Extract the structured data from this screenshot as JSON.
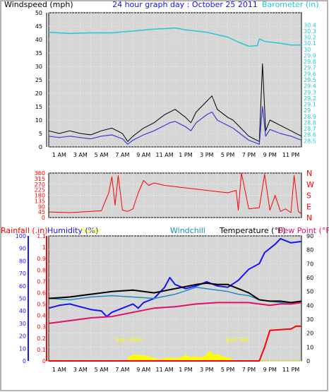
{
  "header": {
    "left_label": "Windspeed (mph)",
    "title": "24 hour graph day : October 25 2011",
    "right_label": "Barometer (in)"
  },
  "colors": {
    "frame_blue": "#1414e6",
    "plot_bg": "#d6d6d6",
    "gust": "#000000",
    "windspeed": "#3a3ad8",
    "barometer": "#22c8d8",
    "direction": "#ff0000",
    "rain": "#ff0000",
    "humidity": "#1414ff",
    "solar": "#ffff00",
    "windchill": "#1e8ec0",
    "temperature": "#000000",
    "dewpoint": "#e0106a"
  },
  "x_axis": {
    "ticks": [
      "1 AM",
      "3 AM",
      "5 AM",
      "7 AM",
      "9 AM",
      "11 AM",
      "1 PM",
      "3 PM",
      "5 PM",
      "7 PM",
      "9 PM",
      "11 PM"
    ]
  },
  "direction_labels": [
    "N",
    "W",
    "S",
    "E",
    "N"
  ],
  "bottom_header": {
    "rainfall": "Rainfall (.in)",
    "humidity": "Humidity (%)",
    "solar": "Solar",
    "windchill": "Windchill",
    "temperature": "Temperature (°F)",
    "dewpoint": "Dew Point (°F)"
  },
  "annotations": {
    "sunrise": "Sun Rise",
    "sunset": "Sun Set"
  },
  "chart_data": [
    {
      "type": "line",
      "x_unit": "hours since midnight",
      "xlim": [
        0,
        24
      ],
      "ylim": [
        0,
        50
      ],
      "y_ticks": [
        0,
        5,
        10,
        15,
        20,
        25,
        30,
        35,
        40,
        45,
        50
      ],
      "ylabel": "Windspeed (mph)",
      "series": [
        {
          "name": "Gust",
          "x": [
            0,
            1,
            2,
            3,
            4,
            5,
            6,
            7,
            7.5,
            8,
            9,
            10,
            11,
            11.5,
            12,
            13,
            13.5,
            14,
            15,
            15.5,
            16,
            17,
            17.5,
            18,
            19,
            20,
            20.3,
            20.6,
            21,
            22,
            23,
            24
          ],
          "y": [
            6,
            5,
            6,
            5,
            4.5,
            6,
            7,
            5,
            2,
            4,
            7,
            9,
            12,
            13,
            14,
            11,
            9,
            13,
            17,
            19,
            14,
            11,
            10,
            8,
            4,
            2,
            31,
            6,
            10,
            8,
            6,
            4
          ]
        },
        {
          "name": "Windspeed",
          "x": [
            0,
            1,
            2,
            3,
            4,
            5,
            6,
            7,
            7.5,
            8,
            9,
            10,
            11,
            11.5,
            12,
            13,
            13.5,
            14,
            15,
            15.5,
            16,
            17,
            17.5,
            18,
            19,
            20,
            20.3,
            20.6,
            21,
            22,
            23,
            24
          ],
          "y": [
            4,
            3.5,
            4,
            3.5,
            3,
            4,
            4.5,
            3,
            1,
            2.5,
            4.5,
            6,
            8,
            9,
            9.5,
            7.5,
            6,
            9,
            12,
            13,
            10,
            8,
            7,
            5.5,
            2.5,
            1,
            15,
            4,
            6.5,
            5,
            4,
            2.5
          ]
        }
      ]
    },
    {
      "type": "line",
      "x_unit": "hours since midnight",
      "xlim": [
        0,
        24
      ],
      "ylim": [
        28.4,
        30.6
      ],
      "y_ticks": [
        28.5,
        28.6,
        28.7,
        28.8,
        28.9,
        29,
        29.1,
        29.2,
        29.3,
        29.4,
        29.5,
        29.6,
        29.7,
        29.8,
        29.9,
        30,
        30.1,
        30.2,
        30.3,
        30.4
      ],
      "ylabel": "Barometer (in)",
      "series": [
        {
          "name": "Barometer",
          "x": [
            0,
            2,
            4,
            6,
            8,
            10,
            11,
            12,
            13,
            14,
            15,
            16,
            17,
            18,
            19,
            19.8,
            20,
            20.5,
            21,
            22,
            23,
            24
          ],
          "y": [
            30.28,
            30.26,
            30.27,
            30.27,
            30.3,
            30.33,
            30.34,
            30.35,
            30.32,
            30.3,
            30.28,
            30.24,
            30.2,
            30.12,
            30.05,
            30.06,
            30.17,
            30.13,
            30.12,
            30.1,
            30.07,
            30.07
          ]
        }
      ]
    },
    {
      "type": "line",
      "x_unit": "hours since midnight",
      "xlim": [
        0,
        24
      ],
      "ylim": [
        0,
        360
      ],
      "y_ticks": [
        0,
        45,
        90,
        135,
        180,
        225,
        270,
        315,
        360
      ],
      "series": [
        {
          "name": "Wind Direction",
          "x": [
            0,
            2,
            4,
            5,
            5.7,
            6,
            6.3,
            6.6,
            7,
            7.5,
            8,
            8.5,
            9,
            9.5,
            10,
            11,
            12,
            13,
            14,
            15,
            16,
            17,
            17.8,
            18,
            18.3,
            19,
            20,
            20.5,
            21,
            21.5,
            22,
            22.5,
            23,
            23.3,
            23.7,
            24
          ],
          "y": [
            45,
            40,
            50,
            55,
            200,
            330,
            100,
            340,
            60,
            50,
            70,
            200,
            300,
            260,
            280,
            260,
            250,
            240,
            230,
            220,
            210,
            200,
            220,
            60,
            360,
            70,
            80,
            350,
            60,
            180,
            50,
            70,
            40,
            340,
            50,
            30
          ]
        }
      ]
    },
    {
      "type": "line",
      "x_unit": "hours since midnight",
      "xlim": [
        0,
        24
      ],
      "ylim": [
        0,
        90
      ],
      "y_ticks": [
        0,
        10,
        20,
        30,
        40,
        50,
        60,
        70,
        80,
        90
      ],
      "series": [
        {
          "name": "Humidity",
          "x": [
            0,
            1,
            2,
            3,
            4,
            5,
            5.5,
            6,
            7,
            8,
            8.5,
            9,
            10,
            11,
            11.5,
            12,
            13,
            14,
            15,
            16,
            17,
            18,
            19,
            20,
            20.5,
            21,
            21.5,
            22,
            23,
            24
          ],
          "y": [
            38,
            40,
            41,
            39,
            37,
            36,
            32,
            35,
            38,
            41,
            38,
            42,
            45,
            53,
            60,
            55,
            52,
            54,
            57,
            54,
            53,
            58,
            66,
            70,
            78,
            81,
            84,
            88,
            85,
            86
          ]
        },
        {
          "name": "Solar",
          "x": [
            0,
            7.5,
            7.6,
            8,
            8.5,
            9,
            9.5,
            10,
            10.5,
            11,
            11.5,
            12,
            12.5,
            13,
            13.5,
            14,
            14.5,
            15,
            15.3,
            15.6,
            16,
            16.5,
            17,
            17.4,
            17.5,
            24
          ],
          "y": [
            0,
            0,
            3,
            4.2,
            4.4,
            3.8,
            3.2,
            2,
            0.8,
            1.6,
            2.6,
            1.5,
            2.4,
            4,
            2.6,
            3.2,
            2.2,
            4.5,
            7.3,
            4.5,
            5,
            3.2,
            2.4,
            1.2,
            0,
            0
          ]
        },
        {
          "name": "Windchill",
          "x": [
            0,
            2,
            4,
            6,
            8,
            10,
            12,
            14,
            15,
            16,
            17,
            18,
            19,
            20,
            21,
            22,
            23,
            24
          ],
          "y": [
            45,
            44,
            46,
            47,
            46,
            45,
            48,
            53,
            52,
            51,
            50,
            48,
            47,
            44,
            43,
            42,
            41,
            42
          ]
        },
        {
          "name": "Temperature",
          "x": [
            0,
            2,
            4,
            6,
            8,
            10,
            12,
            14,
            15,
            16,
            17,
            18,
            19,
            20,
            21,
            22,
            23,
            24
          ],
          "y": [
            45,
            46,
            48,
            50,
            51,
            49,
            52,
            55,
            56,
            55,
            55,
            52,
            49,
            44,
            43,
            43,
            42,
            43
          ]
        },
        {
          "name": "Dew Point",
          "x": [
            0,
            2,
            4,
            6,
            8,
            10,
            12,
            14,
            16,
            18,
            19,
            20,
            21,
            22,
            23,
            24
          ],
          "y": [
            27,
            29,
            31,
            32,
            35,
            38,
            39,
            41,
            42,
            42,
            42,
            41,
            40,
            41,
            41,
            42
          ]
        },
        {
          "name": "Rainfall",
          "x": [
            0,
            20,
            20.5,
            21,
            23,
            23.5,
            24
          ],
          "y": [
            0,
            0,
            10,
            22,
            23,
            25,
            25
          ]
        }
      ]
    }
  ]
}
